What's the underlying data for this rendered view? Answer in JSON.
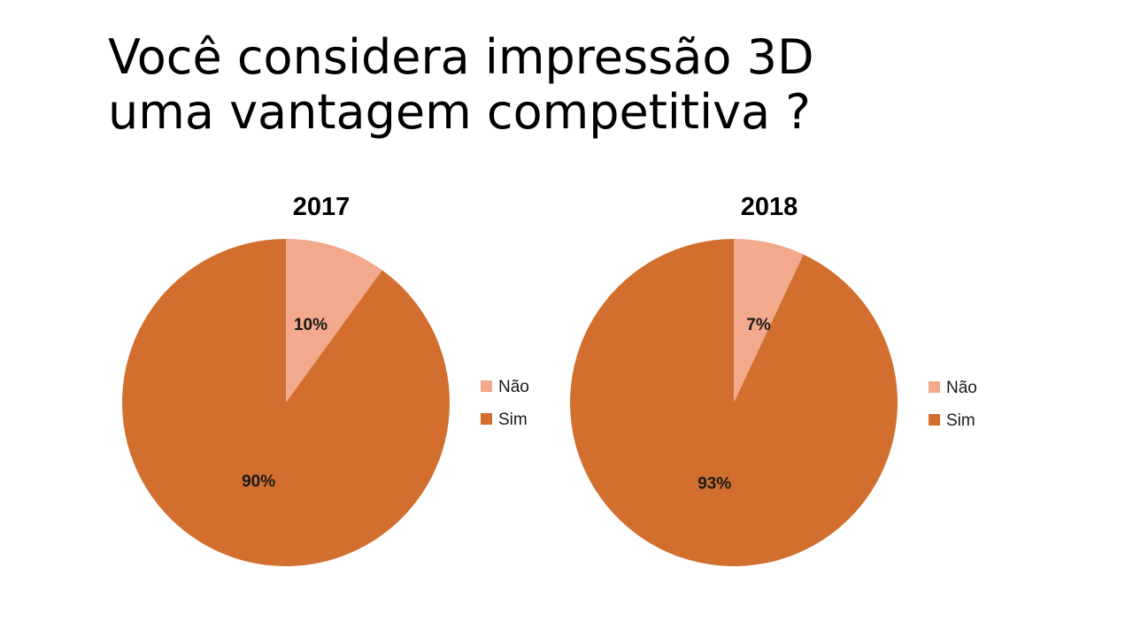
{
  "slide": {
    "title_line1": "Você considera impressão 3D",
    "title_line2": "uma vantagem competitiva ?"
  },
  "colors": {
    "nao": "#F3A98B",
    "sim": "#D26F2E",
    "background": "#FFFFFF"
  },
  "chart_data": [
    {
      "type": "pie",
      "title": "2017",
      "categories": [
        "Não",
        "Sim"
      ],
      "values": [
        10,
        90
      ],
      "labels": [
        "10%",
        "90%"
      ],
      "start_angle": "12 o'clock, clockwise",
      "legend_position": "right"
    },
    {
      "type": "pie",
      "title": "2018",
      "categories": [
        "Não",
        "Sim"
      ],
      "values": [
        7,
        93
      ],
      "labels": [
        "7%",
        "93%"
      ],
      "start_angle": "12 o'clock, clockwise",
      "legend_position": "right"
    }
  ]
}
